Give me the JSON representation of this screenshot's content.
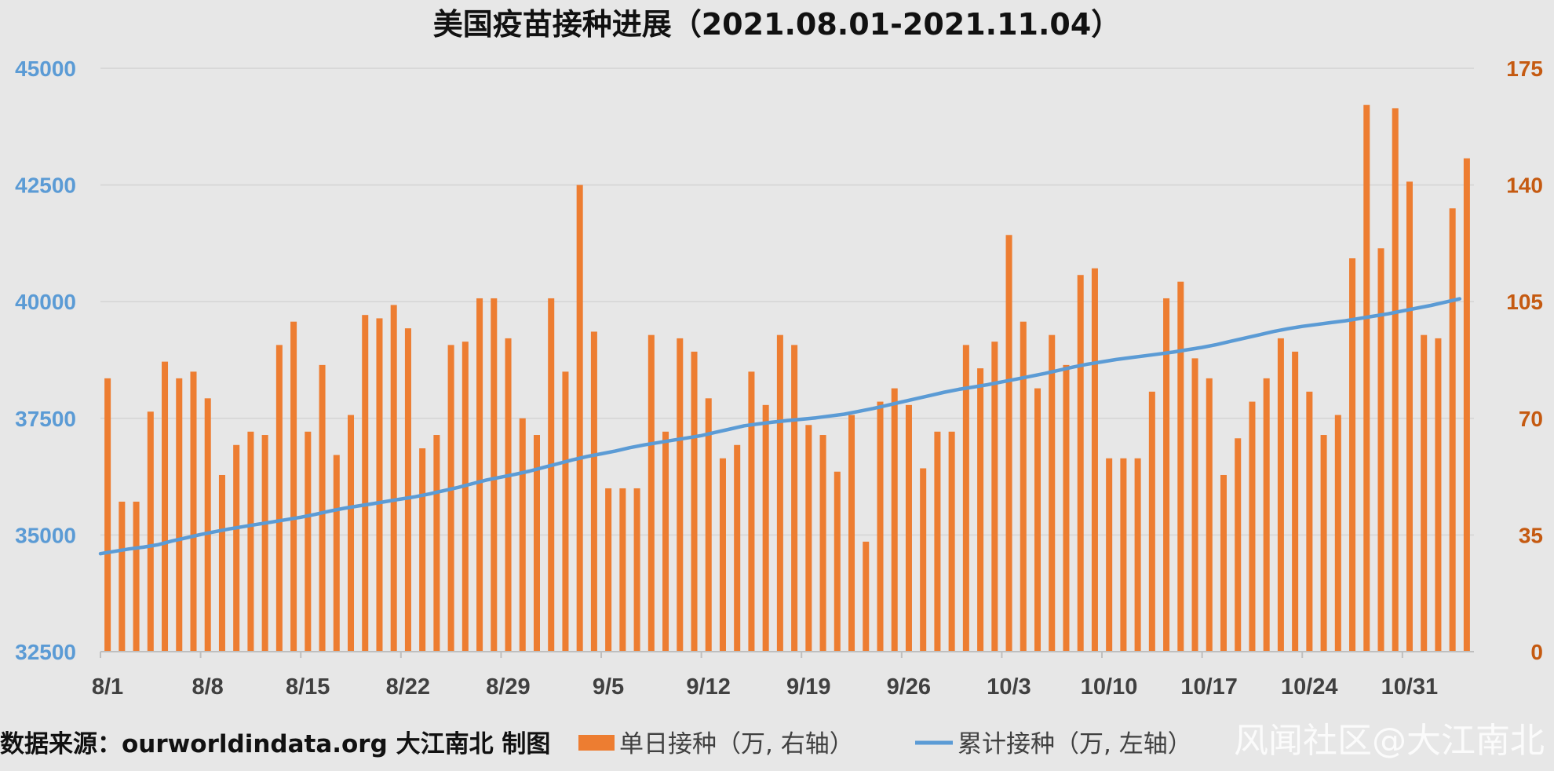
{
  "chart_data": {
    "type": "bar",
    "title": "美国疫苗接种进展（2021.08.01-2021.11.04）",
    "source_note": "数据来源：ourworldindata.org 大江南北 制图",
    "watermark": "风闻社区@大江南北",
    "x_tick_labels": [
      "8/1",
      "8/8",
      "8/15",
      "8/22",
      "8/29",
      "9/5",
      "9/12",
      "9/19",
      "9/26",
      "10/3",
      "10/10",
      "10/17",
      "10/24",
      "10/31"
    ],
    "left_axis": {
      "ticks": [
        "45000",
        "42500",
        "40000",
        "37500",
        "35000",
        "32500"
      ],
      "ylim": [
        32500,
        45000
      ],
      "color": "#5b9bd5"
    },
    "right_axis": {
      "ticks": [
        "175",
        "140",
        "105",
        "70",
        "35",
        "0"
      ],
      "ylim": [
        0,
        175
      ],
      "color": "#c55a11"
    },
    "grid": true,
    "legend_position": "bottom",
    "series": [
      {
        "name": "单日接种（万, 右轴）",
        "kind": "bar",
        "axis": "right",
        "color": "#ed7d31",
        "values": [
          82,
          45,
          45,
          72,
          87,
          82,
          84,
          76,
          53,
          62,
          66,
          65,
          92,
          99,
          66,
          86,
          59,
          71,
          101,
          100,
          104,
          97,
          61,
          65,
          92,
          93,
          106,
          106,
          94,
          70,
          65,
          106,
          84,
          140,
          96,
          49,
          49,
          49,
          95,
          66,
          94,
          90,
          76,
          58,
          62,
          84,
          74,
          95,
          92,
          68,
          65,
          54,
          71,
          33,
          75,
          79,
          74,
          55,
          66,
          66,
          92,
          85,
          93,
          125,
          99,
          79,
          95,
          86,
          113,
          115,
          58,
          58,
          58,
          78,
          106,
          111,
          88,
          82,
          53,
          64,
          75,
          82,
          94,
          90,
          78,
          65,
          71,
          118,
          164,
          121,
          163,
          141,
          95,
          94,
          133,
          148
        ]
      },
      {
        "name": "累计接种（万, 左轴）",
        "kind": "line",
        "axis": "left",
        "color": "#5b9bd5",
        "values": [
          34600,
          34650,
          34700,
          34740,
          34790,
          34870,
          34940,
          35010,
          35070,
          35130,
          35180,
          35230,
          35280,
          35330,
          35380,
          35440,
          35510,
          35570,
          35620,
          35670,
          35720,
          35770,
          35820,
          35880,
          35950,
          36020,
          36100,
          36180,
          36240,
          36300,
          36370,
          36450,
          36530,
          36610,
          36680,
          36740,
          36800,
          36870,
          36930,
          36980,
          37030,
          37080,
          37130,
          37200,
          37270,
          37340,
          37380,
          37420,
          37450,
          37480,
          37510,
          37550,
          37590,
          37650,
          37710,
          37780,
          37850,
          37920,
          37990,
          38060,
          38120,
          38170,
          38220,
          38280,
          38340,
          38400,
          38460,
          38530,
          38600,
          38660,
          38710,
          38760,
          38800,
          38840,
          38880,
          38920,
          38970,
          39020,
          39080,
          39150,
          39220,
          39290,
          39360,
          39420,
          39470,
          39510,
          39550,
          39590,
          39640,
          39690,
          39740,
          39800,
          39860,
          39920,
          39990,
          40060
        ]
      }
    ]
  }
}
